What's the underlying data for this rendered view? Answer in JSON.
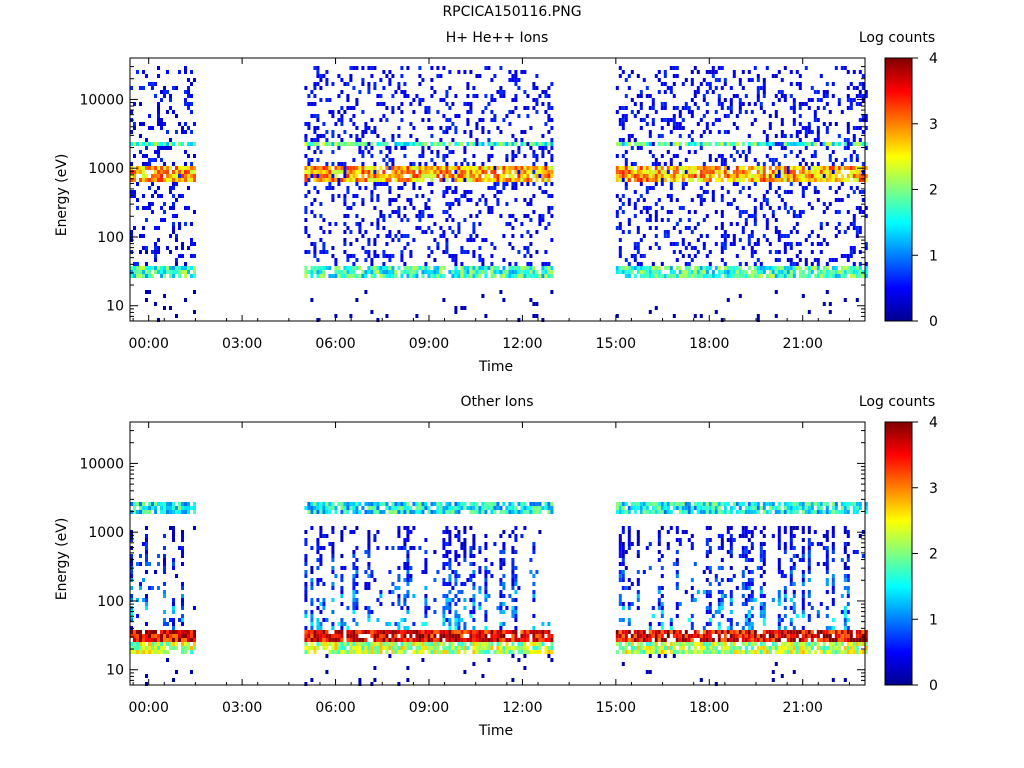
{
  "title": "RPCICA150116.PNG",
  "colorbar_ticks": [
    "0",
    "1",
    "2",
    "3",
    "4"
  ],
  "chart_data": [
    {
      "type": "heatmap",
      "title": "H+ He++ Ions",
      "xlabel": "Time",
      "ylabel": "Energy (eV)",
      "colorbar_label": "Log counts",
      "yscale": "log",
      "ylim": [
        6,
        40000
      ],
      "xlim_hours": [
        -0.6,
        23.0
      ],
      "clim": [
        0,
        4
      ],
      "x_ticks": [
        "00:00",
        "03:00",
        "06:00",
        "09:00",
        "12:00",
        "15:00",
        "18:00",
        "21:00"
      ],
      "y_ticks": [
        "10",
        "100",
        "1000",
        "10000"
      ],
      "data_segments_hours": [
        [
          -0.6,
          1.5
        ],
        [
          5.0,
          12.9
        ],
        [
          15.0,
          23.0
        ]
      ],
      "features": [
        {
          "band_ev": [
            2000,
            2500
          ],
          "level": 1.8
        },
        {
          "band_ev": [
            600,
            1100
          ],
          "level": 2.8
        },
        {
          "band_ev": [
            25,
            40
          ],
          "level": 1.7
        },
        {
          "range_ev": [
            40,
            30000
          ],
          "level": 0.3
        }
      ]
    },
    {
      "type": "heatmap",
      "title": "Other Ions",
      "xlabel": "Time",
      "ylabel": "Energy (eV)",
      "colorbar_label": "Log counts",
      "yscale": "log",
      "ylim": [
        6,
        40000
      ],
      "xlim_hours": [
        -0.6,
        23.0
      ],
      "clim": [
        0,
        4
      ],
      "x_ticks": [
        "00:00",
        "03:00",
        "06:00",
        "09:00",
        "12:00",
        "15:00",
        "18:00",
        "21:00"
      ],
      "y_ticks": [
        "10",
        "100",
        "1000",
        "10000"
      ],
      "data_segments_hours": [
        [
          -0.6,
          1.5
        ],
        [
          5.0,
          12.9
        ],
        [
          15.0,
          23.0
        ]
      ],
      "features": [
        {
          "band_ev": [
            25,
            40
          ],
          "level": 3.6
        },
        {
          "band_ev": [
            18,
            25
          ],
          "level": 2.2
        },
        {
          "range_ev": [
            40,
            1200
          ],
          "level": 1.3
        },
        {
          "band_ev": [
            1800,
            2600
          ],
          "level": 1.5
        }
      ]
    }
  ]
}
